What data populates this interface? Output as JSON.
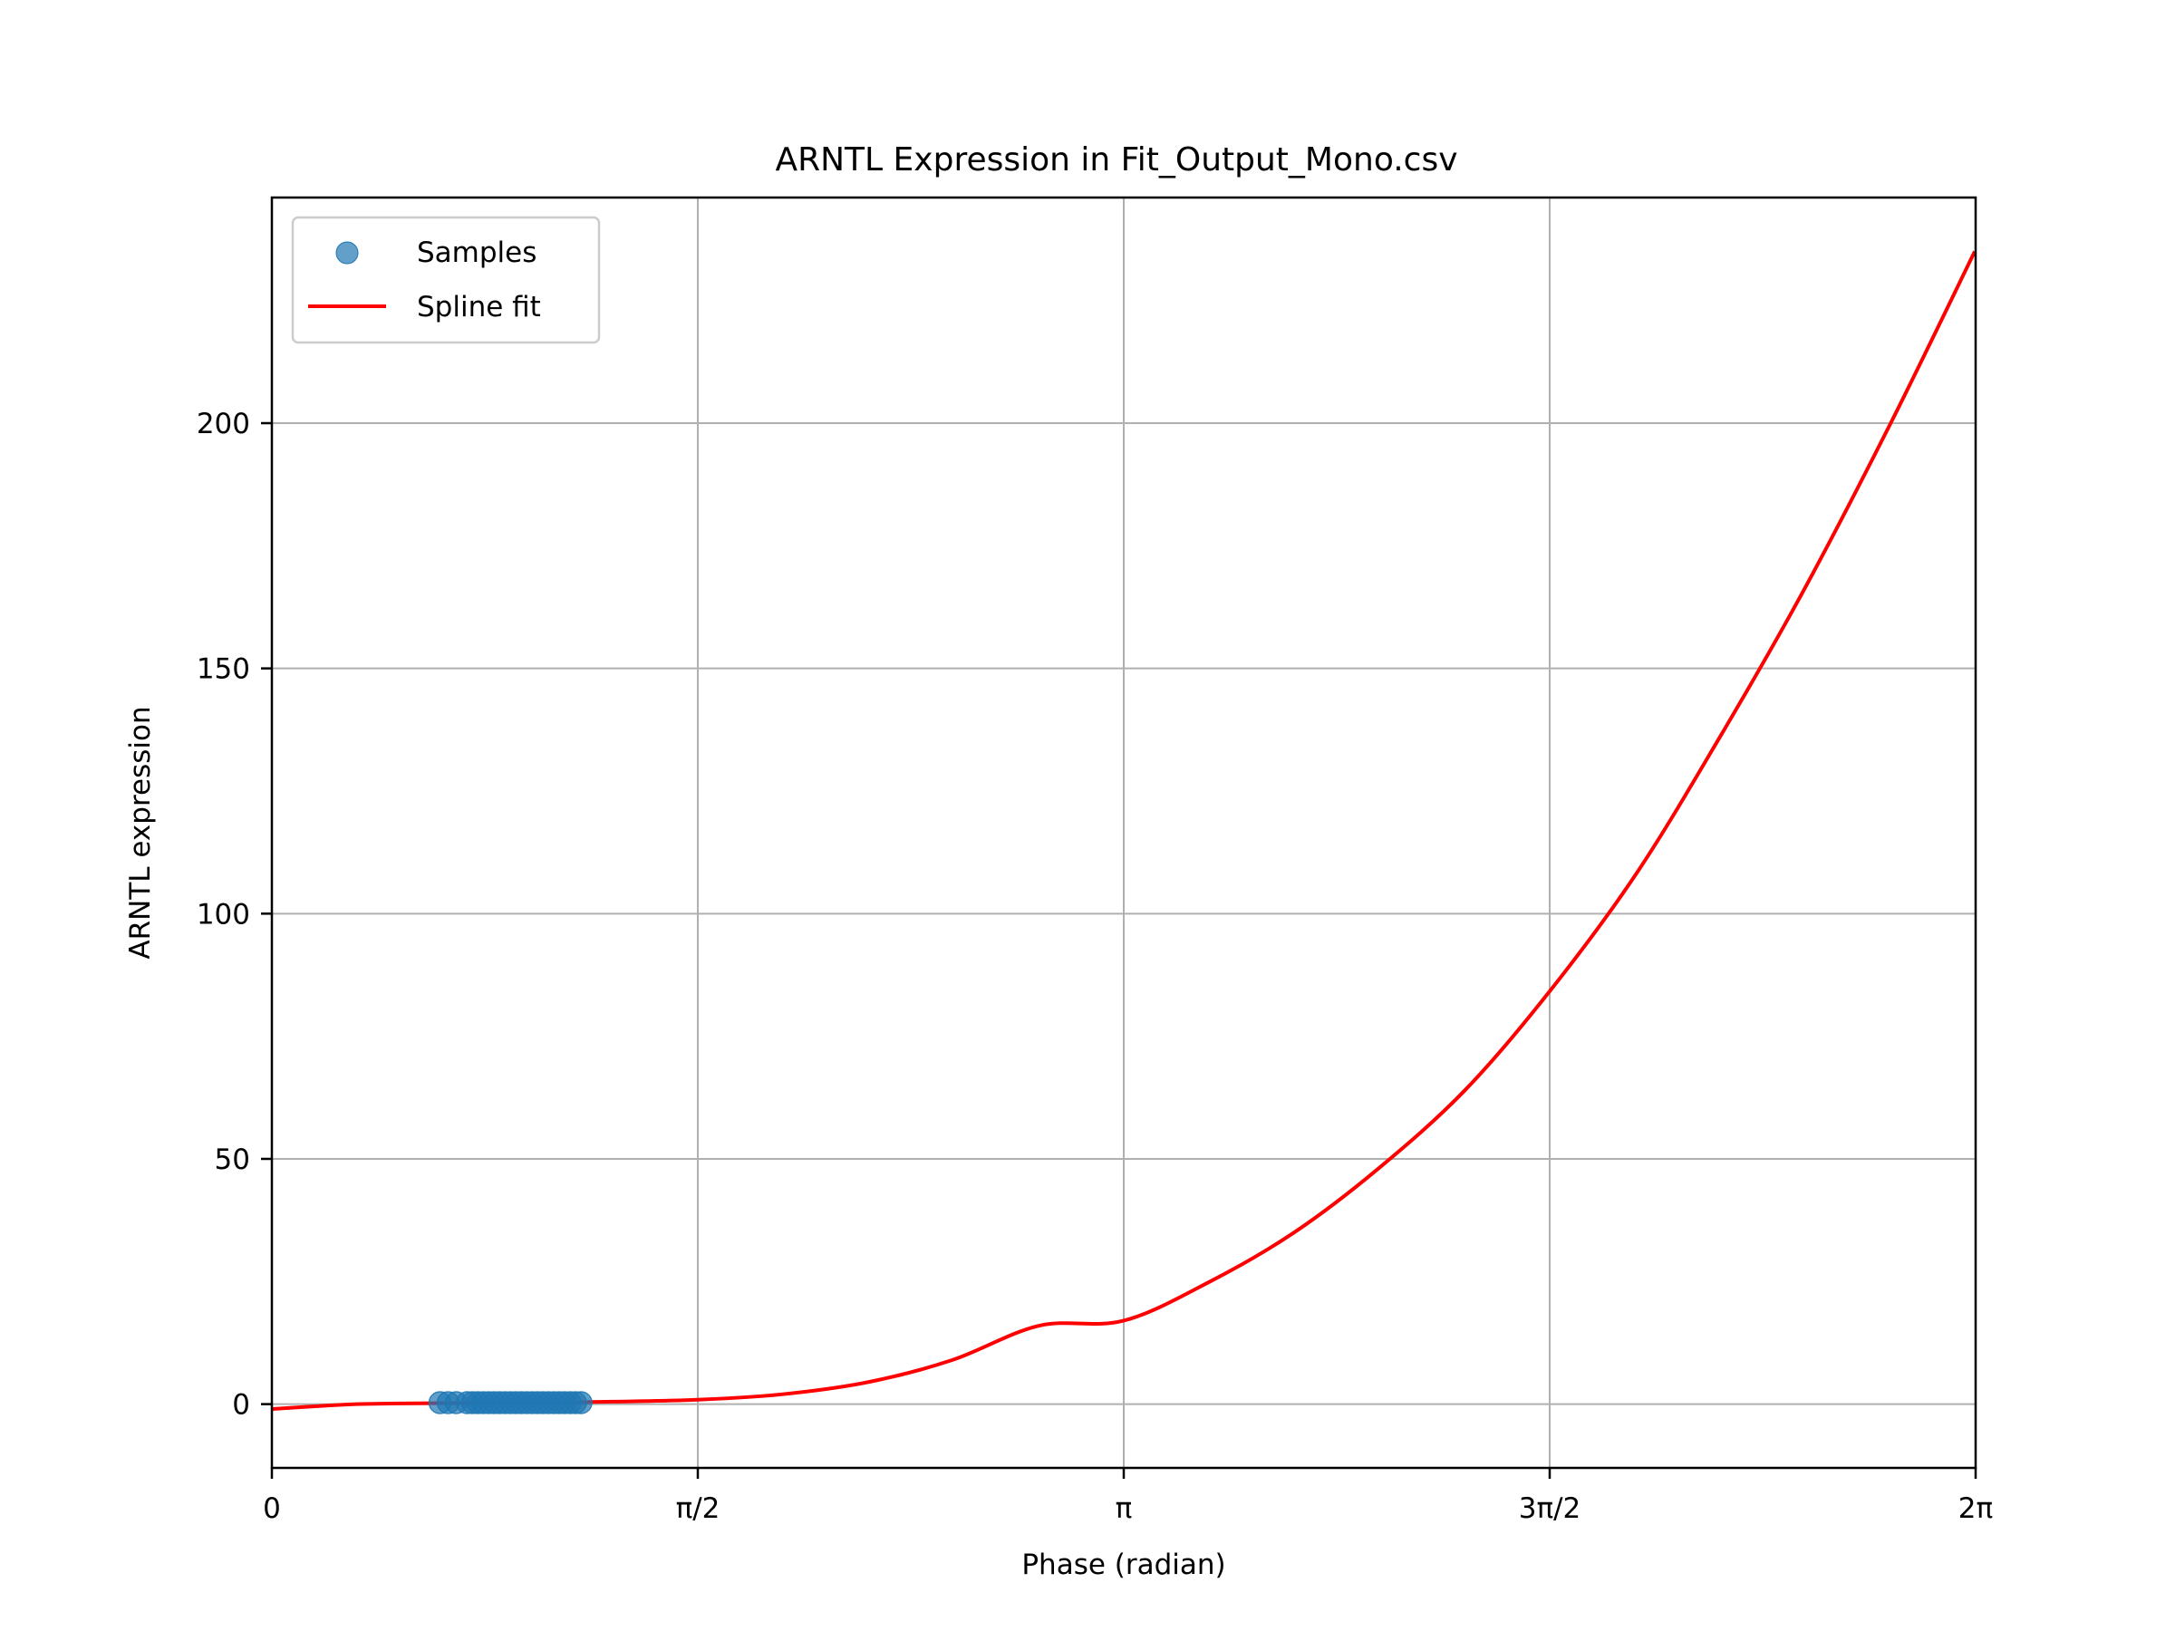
{
  "chart_data": {
    "type": "scatter",
    "title": "ARNTL Expression in Fit_Output_Mono.csv",
    "xlabel": "Phase (radian)",
    "ylabel": "ARNTL expression",
    "xlim": [
      0,
      6.2832
    ],
    "ylim": [
      -13,
      246
    ],
    "x_ticks": [
      {
        "value": 0,
        "label": "0"
      },
      {
        "value": 1.5708,
        "label": "π/2"
      },
      {
        "value": 3.1416,
        "label": "π"
      },
      {
        "value": 4.7124,
        "label": "3π/2"
      },
      {
        "value": 6.2832,
        "label": "2π"
      }
    ],
    "y_ticks": [
      {
        "value": 0,
        "label": "0"
      },
      {
        "value": 50,
        "label": "50"
      },
      {
        "value": 100,
        "label": "100"
      },
      {
        "value": 150,
        "label": "150"
      },
      {
        "value": 200,
        "label": "200"
      }
    ],
    "grid": true,
    "legend_position": "top-left",
    "series": [
      {
        "name": "Samples",
        "kind": "scatter",
        "color": "#1f77b4",
        "x": [
          0.62,
          0.65,
          0.68,
          0.72,
          0.74,
          0.76,
          0.78,
          0.8,
          0.82,
          0.84,
          0.86,
          0.88,
          0.9,
          0.92,
          0.94,
          0.96,
          0.98,
          1.0,
          1.02,
          1.04,
          1.06,
          1.08,
          1.1,
          1.12,
          1.14
        ],
        "y": [
          0.3,
          0.3,
          0.3,
          0.3,
          0.3,
          0.3,
          0.3,
          0.3,
          0.3,
          0.3,
          0.3,
          0.3,
          0.3,
          0.3,
          0.3,
          0.3,
          0.3,
          0.3,
          0.3,
          0.3,
          0.3,
          0.3,
          0.3,
          0.3,
          0.3
        ]
      },
      {
        "name": "Spline fit",
        "kind": "line",
        "color": "#ff0000",
        "x": [
          0,
          0.31,
          0.63,
          0.94,
          1.26,
          1.57,
          1.88,
          2.2,
          2.51,
          2.83,
          3.14,
          3.46,
          3.77,
          4.08,
          4.4,
          4.71,
          5.03,
          5.34,
          5.65,
          5.97,
          6.28
        ],
        "y": [
          -1,
          0,
          0.2,
          0.3,
          0.5,
          0.9,
          2.0,
          4.5,
          9,
          16,
          17,
          25,
          35,
          48,
          64,
          84,
          108,
          136,
          166,
          200,
          235
        ]
      }
    ]
  }
}
